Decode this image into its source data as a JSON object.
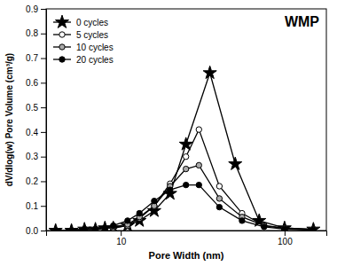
{
  "chart_data": {
    "type": "line",
    "title": "WMP",
    "xlabel": "Pore Width (nm)",
    "ylabel": "dV/dlog(w) Pore Volume (cm³/g)",
    "log": "x",
    "xlim": [
      3.5,
      180
    ],
    "xticks": [
      10,
      100
    ],
    "ylim": [
      0.0,
      0.9
    ],
    "yticks": [
      {
        "value": 0.0,
        "label": "0.0"
      },
      0.1,
      0.2,
      0.3,
      0.4,
      0.5,
      0.6,
      0.7,
      0.8,
      0.9
    ],
    "grid": false,
    "legend": "upper left",
    "series": [
      {
        "name": "0 cycles",
        "color": "#000000",
        "marker": "star",
        "x": [
          4,
          5,
          6,
          7,
          8,
          9,
          11,
          13,
          16,
          20,
          25,
          35,
          50,
          70,
          100,
          150
        ],
        "values": [
          0.0,
          0.0,
          0.005,
          0.005,
          0.01,
          0.01,
          0.02,
          0.04,
          0.08,
          0.15,
          0.35,
          0.64,
          0.27,
          0.04,
          0.01,
          0.005
        ]
      },
      {
        "name": "5 cycles",
        "color": "#000000",
        "marker": "circle-open",
        "x": [
          4,
          5,
          6,
          7,
          8,
          9,
          11,
          13,
          16,
          20,
          25,
          30,
          40,
          55,
          75,
          100,
          150
        ],
        "values": [
          0.0,
          0.0,
          0.005,
          0.005,
          0.01,
          0.01,
          0.02,
          0.05,
          0.1,
          0.19,
          0.3,
          0.41,
          0.18,
          0.07,
          0.02,
          0.01,
          0.005
        ]
      },
      {
        "name": "10 cycles",
        "color": "#000000",
        "marker": "circle-gray",
        "x": [
          4,
          5,
          6,
          7,
          8,
          9,
          11,
          13,
          16,
          20,
          25,
          30,
          40,
          55,
          75,
          100,
          150
        ],
        "values": [
          0.0,
          0.0,
          0.005,
          0.005,
          0.01,
          0.015,
          0.025,
          0.055,
          0.1,
          0.18,
          0.25,
          0.265,
          0.13,
          0.055,
          0.02,
          0.008,
          0.003
        ]
      },
      {
        "name": "20 cycles",
        "color": "#000000",
        "marker": "circle",
        "x": [
          4,
          5,
          6,
          7,
          8,
          9,
          11,
          13,
          16,
          20,
          25,
          30,
          40,
          55,
          75,
          100,
          150
        ],
        "values": [
          0.0,
          0.0,
          0.005,
          0.005,
          0.01,
          0.02,
          0.04,
          0.07,
          0.12,
          0.165,
          0.185,
          0.185,
          0.095,
          0.04,
          0.015,
          0.006,
          0.002
        ]
      }
    ]
  }
}
